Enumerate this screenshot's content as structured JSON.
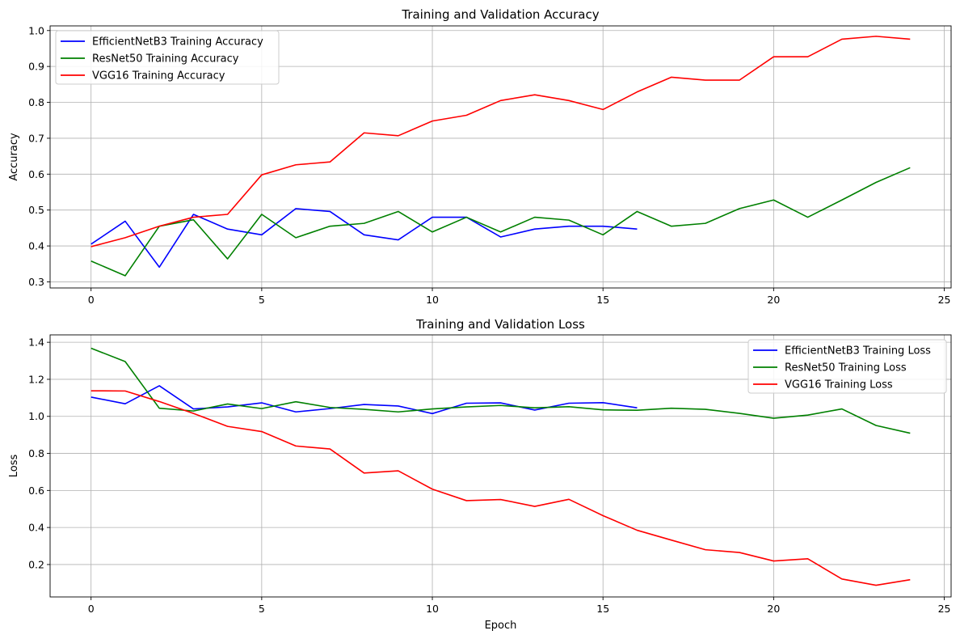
{
  "chart_data": [
    {
      "type": "line",
      "title": "Training and Validation Accuracy",
      "xlabel": "",
      "ylabel": "Accuracy",
      "xlim": [
        -1.2,
        25.2
      ],
      "ylim": [
        0.283,
        1.013
      ],
      "xticks": [
        0,
        5,
        10,
        15,
        20,
        25
      ],
      "yticks": [
        0.3,
        0.4,
        0.5,
        0.6,
        0.7,
        0.8,
        0.9,
        1.0
      ],
      "ytick_labels": [
        "0.3",
        "0.4",
        "0.5",
        "0.6",
        "0.7",
        "0.8",
        "0.9",
        "1.0"
      ],
      "grid": true,
      "legend_position": "top-left",
      "series": [
        {
          "name": "EfficientNetB3 Training Accuracy",
          "color": "#0000ff",
          "x": [
            0,
            1,
            2,
            3,
            4,
            5,
            6,
            7,
            8,
            9,
            10,
            11,
            12,
            13,
            14,
            15,
            16
          ],
          "values": [
            0.405,
            0.469,
            0.341,
            0.488,
            0.447,
            0.431,
            0.504,
            0.496,
            0.431,
            0.417,
            0.48,
            0.48,
            0.425,
            0.447,
            0.455,
            0.455,
            0.447
          ]
        },
        {
          "name": "ResNet50 Training Accuracy",
          "color": "#008000",
          "x": [
            0,
            1,
            2,
            3,
            4,
            5,
            6,
            7,
            8,
            9,
            10,
            11,
            12,
            13,
            14,
            15,
            16,
            17,
            18,
            19,
            20,
            21,
            22,
            23,
            24
          ],
          "values": [
            0.358,
            0.317,
            0.455,
            0.473,
            0.364,
            0.488,
            0.423,
            0.455,
            0.463,
            0.496,
            0.439,
            0.48,
            0.439,
            0.48,
            0.472,
            0.431,
            0.496,
            0.455,
            0.463,
            0.504,
            0.528,
            0.48,
            0.528,
            0.577,
            0.618
          ]
        },
        {
          "name": "VGG16 Training Accuracy",
          "color": "#ff0000",
          "x": [
            0,
            1,
            2,
            3,
            4,
            5,
            6,
            7,
            8,
            9,
            10,
            11,
            12,
            13,
            14,
            15,
            16,
            17,
            18,
            19,
            20,
            21,
            22,
            23,
            24
          ],
          "values": [
            0.398,
            0.423,
            0.455,
            0.48,
            0.488,
            0.598,
            0.626,
            0.634,
            0.715,
            0.707,
            0.748,
            0.764,
            0.805,
            0.821,
            0.805,
            0.78,
            0.829,
            0.87,
            0.862,
            0.862,
            0.927,
            0.927,
            0.976,
            0.984,
            0.976
          ]
        }
      ]
    },
    {
      "type": "line",
      "title": "Training and Validation Loss",
      "xlabel": "Epoch",
      "ylabel": "Loss",
      "xlim": [
        -1.2,
        25.2
      ],
      "ylim": [
        0.025,
        1.44
      ],
      "xticks": [
        0,
        5,
        10,
        15,
        20,
        25
      ],
      "yticks": [
        0.2,
        0.4,
        0.6,
        0.8,
        1.0,
        1.2,
        1.4
      ],
      "ytick_labels": [
        "0.2",
        "0.4",
        "0.6",
        "0.8",
        "1.0",
        "1.2",
        "1.4"
      ],
      "grid": true,
      "legend_position": "top-right",
      "series": [
        {
          "name": "EfficientNetB3 Training Loss",
          "color": "#0000ff",
          "x": [
            0,
            1,
            2,
            3,
            4,
            5,
            6,
            7,
            8,
            9,
            10,
            11,
            12,
            13,
            14,
            15,
            16
          ],
          "values": [
            1.104,
            1.068,
            1.165,
            1.04,
            1.051,
            1.073,
            1.024,
            1.042,
            1.064,
            1.056,
            1.015,
            1.071,
            1.073,
            1.034,
            1.071,
            1.074,
            1.046
          ]
        },
        {
          "name": "ResNet50 Training Loss",
          "color": "#008000",
          "x": [
            0,
            1,
            2,
            3,
            4,
            5,
            6,
            7,
            8,
            9,
            10,
            11,
            12,
            13,
            14,
            15,
            16,
            17,
            18,
            19,
            20,
            21,
            22,
            23,
            24
          ],
          "values": [
            1.368,
            1.296,
            1.044,
            1.029,
            1.067,
            1.042,
            1.079,
            1.048,
            1.038,
            1.024,
            1.04,
            1.051,
            1.059,
            1.046,
            1.052,
            1.035,
            1.033,
            1.044,
            1.038,
            1.016,
            0.99,
            1.007,
            1.04,
            0.951,
            0.909
          ]
        },
        {
          "name": "VGG16 Training Loss",
          "color": "#ff0000",
          "x": [
            0,
            1,
            2,
            3,
            4,
            5,
            6,
            7,
            8,
            9,
            10,
            11,
            12,
            13,
            14,
            15,
            16,
            17,
            18,
            19,
            20,
            21,
            22,
            23,
            24
          ],
          "values": [
            1.138,
            1.137,
            1.08,
            1.016,
            0.946,
            0.918,
            0.84,
            0.824,
            0.694,
            0.706,
            0.607,
            0.545,
            0.551,
            0.514,
            0.552,
            0.464,
            0.385,
            0.332,
            0.28,
            0.265,
            0.219,
            0.231,
            0.122,
            0.088,
            0.118
          ]
        }
      ]
    }
  ]
}
